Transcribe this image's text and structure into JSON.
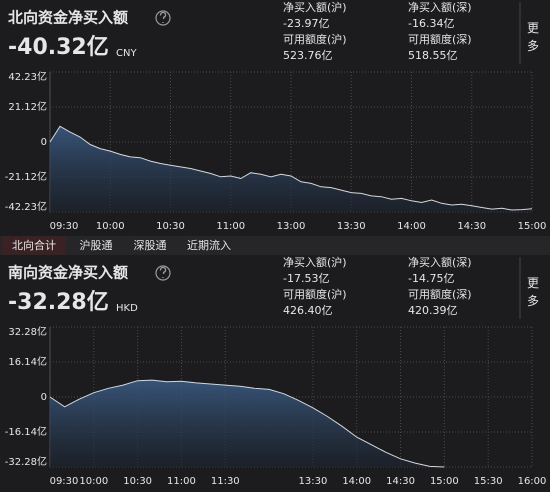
{
  "panels": [
    {
      "title": "北向资金净买入额",
      "total": "-40.32亿",
      "total_color": "#2ec24a",
      "currency": "CNY",
      "more": "更多",
      "stats": [
        {
          "label": "净买入额(沪)",
          "value": "-23.97亿",
          "color": "#2ec24a"
        },
        {
          "label": "净买入额(深)",
          "value": "-16.34亿",
          "color": "#2ec24a"
        },
        {
          "label": "可用额度(沪)",
          "value": "523.76亿",
          "color": "#e6e6e6"
        },
        {
          "label": "可用额度(深)",
          "value": "518.55亿",
          "color": "#e6e6e6"
        }
      ]
    },
    {
      "title": "南向资金净买入额",
      "total": "-32.28亿",
      "total_color": "#2ec24a",
      "currency": "HKD",
      "more": "更多",
      "stats": [
        {
          "label": "净买入额(沪)",
          "value": "-17.53亿",
          "color": "#2ec24a"
        },
        {
          "label": "净买入额(深)",
          "value": "-14.75亿",
          "color": "#2ec24a"
        },
        {
          "label": "可用额度(沪)",
          "value": "426.40亿",
          "color": "#e6e6e6"
        },
        {
          "label": "可用额度(深)",
          "value": "420.39亿",
          "color": "#e6e6e6"
        }
      ]
    }
  ],
  "tabs": [
    "北向合计",
    "沪股通",
    "深股通",
    "近期流入"
  ],
  "active_tab": 0,
  "chart_data": [
    {
      "type": "area",
      "color": "#d8d8d8",
      "fill": "#2e4260",
      "grid": true,
      "ylim": [
        -42.23,
        42.23
      ],
      "yticks": [
        {
          "value": 42.23,
          "label": "42.23亿"
        },
        {
          "value": 21.12,
          "label": "21.12亿"
        },
        0,
        {
          "value": -21.12,
          "label": "-21.12亿"
        },
        {
          "value": -42.23,
          "label": "-42.23亿"
        }
      ],
      "xlim": [
        "09:30",
        "15:00"
      ],
      "xticks": [
        "09:30",
        "10:00",
        "10:30",
        "11:00",
        "13:00",
        "13:30",
        "14:00",
        "14:30",
        "15:00"
      ],
      "x": [
        "09:30",
        "09:35",
        "09:40",
        "09:45",
        "09:50",
        "09:55",
        "10:00",
        "10:05",
        "10:10",
        "10:15",
        "10:20",
        "10:25",
        "10:30",
        "10:35",
        "10:40",
        "10:45",
        "10:50",
        "10:55",
        "11:00",
        "11:05",
        "11:10",
        "11:15",
        "11:20",
        "11:25",
        "11:30",
        "13:05",
        "13:10",
        "13:15",
        "13:20",
        "13:25",
        "13:30",
        "13:35",
        "13:40",
        "13:45",
        "13:50",
        "13:55",
        "14:00",
        "14:05",
        "14:10",
        "14:15",
        "14:20",
        "14:25",
        "14:30",
        "14:35",
        "14:40",
        "14:45",
        "14:50",
        "14:55",
        "15:00"
      ],
      "values": [
        0,
        9.5,
        6.0,
        3.0,
        -1.5,
        -4.0,
        -5.5,
        -7.5,
        -9.0,
        -9.5,
        -11.5,
        -13.0,
        -14.0,
        -15.0,
        -16.0,
        -17.5,
        -19.0,
        -21.0,
        -20.5,
        -22.0,
        -18.5,
        -19.5,
        -21.0,
        -19.5,
        -20.5,
        -24,
        -25,
        -27,
        -27.5,
        -29,
        -30.5,
        -31,
        -32.5,
        -33,
        -34.5,
        -34,
        -35.5,
        -36.5,
        -35,
        -37,
        -38,
        -37.5,
        -38.5,
        -39.5,
        -40.5,
        -40,
        -41,
        -40.8,
        -40.32
      ]
    },
    {
      "type": "area",
      "color": "#d8d8d8",
      "fill": "#2e4260",
      "grid": true,
      "ylim": [
        -32.28,
        32.28
      ],
      "yticks": [
        {
          "value": 32.28,
          "label": "32.28亿"
        },
        {
          "value": 16.14,
          "label": "16.14亿"
        },
        0,
        {
          "value": -16.14,
          "label": "-16.14亿"
        },
        {
          "value": -32.28,
          "label": "-32.28亿"
        }
      ],
      "xlim": [
        "09:30",
        "16:00"
      ],
      "xticks": [
        "09:30",
        "10:00",
        "10:30",
        "11:00",
        "11:30",
        "13:30",
        "14:00",
        "14:30",
        "15:00",
        "15:30",
        "16:00"
      ],
      "x": [
        "09:30",
        "09:40",
        "09:50",
        "10:00",
        "10:10",
        "10:20",
        "10:30",
        "10:40",
        "10:50",
        "11:00",
        "11:10",
        "11:20",
        "11:30",
        "11:40",
        "11:50",
        "12:00",
        "13:10",
        "13:20",
        "13:30",
        "13:40",
        "13:50",
        "14:00",
        "14:10",
        "14:20",
        "14:30",
        "14:40",
        "14:50",
        "15:00"
      ],
      "values": [
        0,
        -4.5,
        -1.0,
        2.0,
        4.0,
        5.5,
        7.5,
        7.8,
        7.0,
        7.3,
        6.5,
        6.0,
        5.5,
        5.0,
        4.0,
        3.5,
        1.5,
        -1.5,
        -5.0,
        -9.0,
        -13.5,
        -18.5,
        -22.0,
        -25.5,
        -28.5,
        -30.5,
        -32.0,
        -32.28
      ]
    }
  ]
}
